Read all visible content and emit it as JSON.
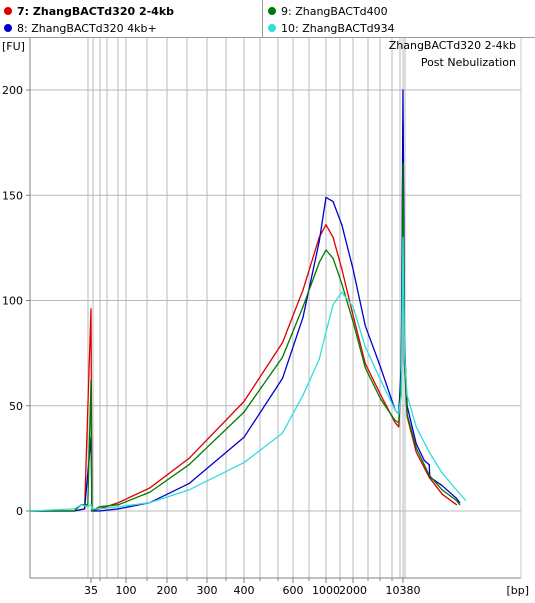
{
  "legend": {
    "items": [
      {
        "label": "7: ZhangBACTd320 2-4kb",
        "color": "#dd0000",
        "bold": true
      },
      {
        "label": "8: ZhangBACTd320 4kb+",
        "color": "#0000cc",
        "bold": false
      },
      {
        "label": "9: ZhangBACTd400",
        "color": "#007a00",
        "bold": false
      },
      {
        "label": "10: ZhangBACTd934",
        "color": "#33dddd",
        "bold": false
      }
    ]
  },
  "chart_data": {
    "type": "line",
    "title": "ZhangBACTd320 2-4kb",
    "subtitle": "Post Nebulization",
    "ylabel": "[FU]",
    "xlabel": "[bp]",
    "ylim": [
      -30,
      205
    ],
    "grid": true,
    "y_ticks": [
      0,
      50,
      100,
      150,
      200
    ],
    "x_ticks": [
      "35",
      "100",
      "200",
      "300",
      "400",
      "600",
      "1000",
      "2000",
      "10380"
    ],
    "series": [
      {
        "name": "7: ZhangBACTd320 2-4kb",
        "color": "#dd0000",
        "points": [
          [
            20,
            0
          ],
          [
            30,
            0
          ],
          [
            33,
            1
          ],
          [
            35,
            96
          ],
          [
            36,
            0
          ],
          [
            45,
            1
          ],
          [
            80,
            4
          ],
          [
            150,
            11
          ],
          [
            250,
            25
          ],
          [
            400,
            52
          ],
          [
            550,
            80
          ],
          [
            700,
            105
          ],
          [
            900,
            130
          ],
          [
            1000,
            136
          ],
          [
            1200,
            130
          ],
          [
            1500,
            115
          ],
          [
            2000,
            93
          ],
          [
            3000,
            70
          ],
          [
            5000,
            55
          ],
          [
            8000,
            42
          ],
          [
            9000,
            40
          ],
          [
            9800,
            60
          ],
          [
            10380,
            185
          ],
          [
            10600,
            70
          ],
          [
            11000,
            45
          ],
          [
            12500,
            28
          ],
          [
            15000,
            16
          ],
          [
            18000,
            8
          ],
          [
            22000,
            3
          ]
        ]
      },
      {
        "name": "8: ZhangBACTd320 4kb+",
        "color": "#0000cc",
        "points": [
          [
            20,
            0
          ],
          [
            30,
            0
          ],
          [
            33,
            1
          ],
          [
            35,
            35
          ],
          [
            36,
            0
          ],
          [
            45,
            0
          ],
          [
            80,
            1
          ],
          [
            150,
            4
          ],
          [
            250,
            13
          ],
          [
            400,
            35
          ],
          [
            550,
            63
          ],
          [
            700,
            92
          ],
          [
            900,
            128
          ],
          [
            1000,
            149
          ],
          [
            1200,
            147
          ],
          [
            1500,
            136
          ],
          [
            2000,
            115
          ],
          [
            3000,
            88
          ],
          [
            5000,
            68
          ],
          [
            8000,
            48
          ],
          [
            9000,
            46
          ],
          [
            9800,
            70
          ],
          [
            10380,
            200
          ],
          [
            10600,
            80
          ],
          [
            11000,
            50
          ],
          [
            12500,
            32
          ],
          [
            14000,
            24
          ],
          [
            15000,
            22
          ],
          [
            15100,
            17
          ],
          [
            15200,
            16
          ],
          [
            18000,
            12
          ],
          [
            22000,
            6
          ],
          [
            23000,
            4
          ]
        ]
      },
      {
        "name": "9: ZhangBACTd400",
        "color": "#007a00",
        "points": [
          [
            20,
            0
          ],
          [
            30,
            0
          ],
          [
            32,
            3
          ],
          [
            34,
            3
          ],
          [
            35,
            62
          ],
          [
            36,
            0
          ],
          [
            45,
            2
          ],
          [
            80,
            3
          ],
          [
            150,
            9
          ],
          [
            250,
            22
          ],
          [
            400,
            47
          ],
          [
            550,
            73
          ],
          [
            700,
            97
          ],
          [
            900,
            118
          ],
          [
            1000,
            124
          ],
          [
            1200,
            120
          ],
          [
            1500,
            108
          ],
          [
            2000,
            90
          ],
          [
            3000,
            68
          ],
          [
            5000,
            53
          ],
          [
            8000,
            43
          ],
          [
            9000,
            42
          ],
          [
            9800,
            65
          ],
          [
            10380,
            165
          ],
          [
            10600,
            70
          ],
          [
            11000,
            46
          ],
          [
            12500,
            30
          ],
          [
            15000,
            17
          ],
          [
            18000,
            10
          ],
          [
            22000,
            5
          ],
          [
            23000,
            3
          ]
        ]
      },
      {
        "name": "10: ZhangBACTd934",
        "color": "#33dddd",
        "points": [
          [
            20,
            0
          ],
          [
            30,
            1
          ],
          [
            32,
            3
          ],
          [
            34,
            2
          ],
          [
            35,
            3
          ],
          [
            36,
            1
          ],
          [
            45,
            1
          ],
          [
            80,
            2
          ],
          [
            150,
            4
          ],
          [
            250,
            10
          ],
          [
            400,
            23
          ],
          [
            550,
            37
          ],
          [
            700,
            55
          ],
          [
            900,
            72
          ],
          [
            1000,
            85
          ],
          [
            1200,
            98
          ],
          [
            1500,
            104
          ],
          [
            2000,
            97
          ],
          [
            3000,
            78
          ],
          [
            5000,
            62
          ],
          [
            8000,
            48
          ],
          [
            9000,
            46
          ],
          [
            9800,
            55
          ],
          [
            10380,
            130
          ],
          [
            10600,
            75
          ],
          [
            11000,
            55
          ],
          [
            12500,
            40
          ],
          [
            15000,
            28
          ],
          [
            18000,
            18
          ],
          [
            22000,
            10
          ],
          [
            25000,
            5
          ]
        ]
      }
    ]
  }
}
